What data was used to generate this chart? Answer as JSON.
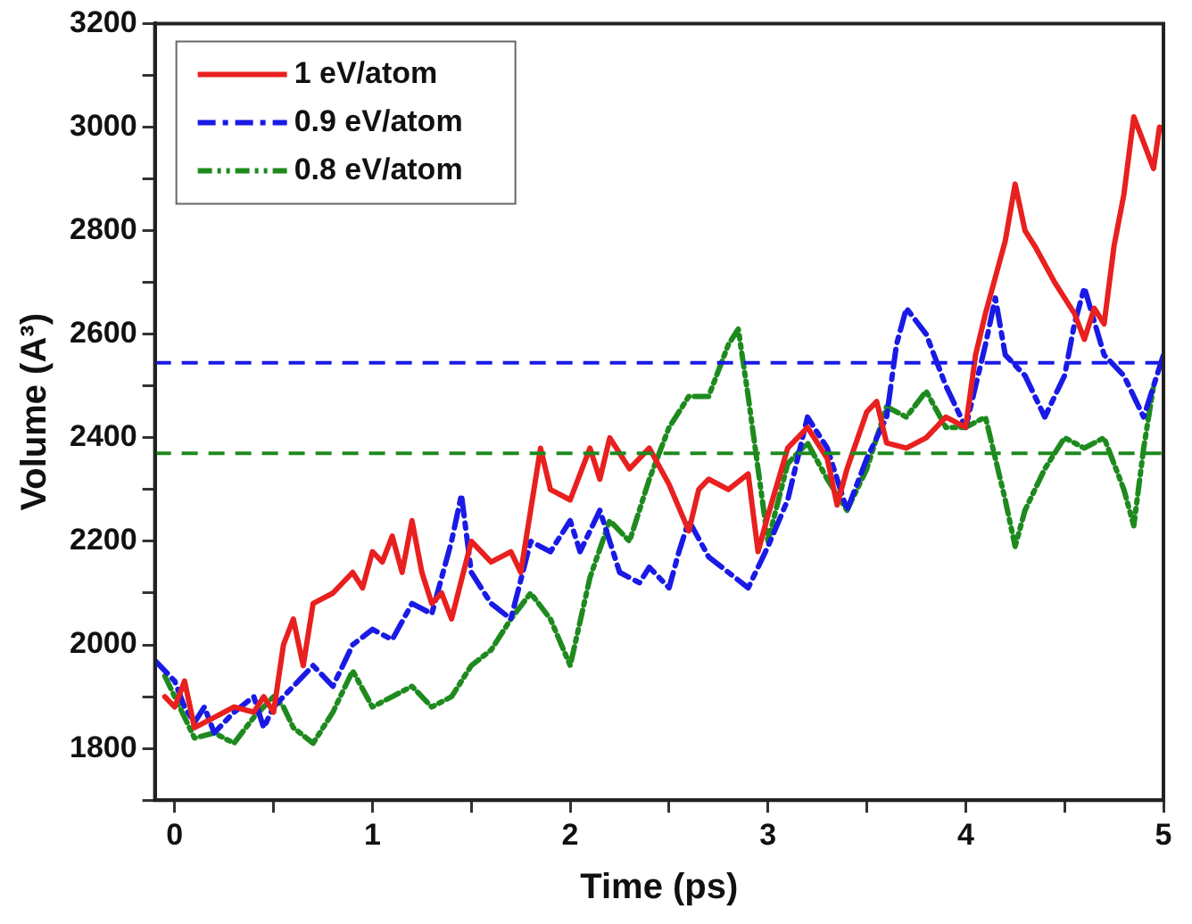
{
  "chart_data": {
    "type": "line",
    "xlabel": "Time (ps)",
    "ylabel": "Volume (A³)",
    "xlim": [
      -0.1,
      5
    ],
    "ylim": [
      1700,
      3200
    ],
    "xticks": [
      0,
      {
        "value": 0.5,
        "label": null
      },
      1,
      {
        "value": 1.5,
        "label": null
      },
      2,
      {
        "value": 2.5,
        "label": null
      },
      3,
      {
        "value": 3.5,
        "label": null
      },
      4,
      {
        "value": 4.5,
        "label": null
      },
      5
    ],
    "yticks": [
      {
        "value": 1700,
        "label": null
      },
      1800,
      {
        "value": 1900,
        "label": null
      },
      2000,
      {
        "value": 2100,
        "label": null
      },
      2200,
      {
        "value": 2300,
        "label": null
      },
      2400,
      {
        "value": 2500,
        "label": null
      },
      2600,
      {
        "value": 2700,
        "label": null
      },
      2800,
      {
        "value": 2900,
        "label": null
      },
      3000,
      {
        "value": 3100,
        "label": null
      },
      3200
    ],
    "grid": false,
    "legend": "top left",
    "marker": "none",
    "series": [
      {
        "name": "1 eV/atom",
        "color": "#e8201f",
        "line_style": "solid",
        "x": [
          -0.05,
          0,
          0.05,
          0.1,
          0.2,
          0.3,
          0.4,
          0.45,
          0.5,
          0.55,
          0.6,
          0.65,
          0.7,
          0.8,
          0.9,
          0.95,
          1.0,
          1.05,
          1.1,
          1.15,
          1.2,
          1.25,
          1.3,
          1.35,
          1.4,
          1.5,
          1.6,
          1.7,
          1.75,
          1.85,
          1.9,
          2.0,
          2.1,
          2.15,
          2.2,
          2.3,
          2.4,
          2.5,
          2.6,
          2.65,
          2.7,
          2.8,
          2.9,
          2.95,
          3.0,
          3.1,
          3.2,
          3.3,
          3.35,
          3.4,
          3.5,
          3.55,
          3.6,
          3.7,
          3.8,
          3.9,
          4.0,
          4.05,
          4.1,
          4.2,
          4.25,
          4.3,
          4.35,
          4.45,
          4.55,
          4.6,
          4.65,
          4.7,
          4.75,
          4.8,
          4.85,
          4.9,
          4.95,
          4.98
        ],
        "values": [
          1900,
          1880,
          1930,
          1840,
          1860,
          1880,
          1870,
          1900,
          1870,
          2000,
          2050,
          1960,
          2080,
          2100,
          2140,
          2110,
          2180,
          2160,
          2210,
          2140,
          2240,
          2140,
          2080,
          2100,
          2050,
          2200,
          2160,
          2180,
          2140,
          2380,
          2300,
          2280,
          2380,
          2320,
          2400,
          2340,
          2380,
          2310,
          2220,
          2300,
          2320,
          2300,
          2330,
          2180,
          2250,
          2380,
          2420,
          2360,
          2270,
          2340,
          2450,
          2470,
          2390,
          2380,
          2400,
          2440,
          2420,
          2560,
          2640,
          2780,
          2890,
          2800,
          2770,
          2700,
          2640,
          2590,
          2650,
          2620,
          2770,
          2870,
          3020,
          2970,
          2920,
          3000
        ]
      },
      {
        "name": "0.9 eV/atom",
        "color": "#1a1ae6",
        "line_style": "dashed",
        "x": [
          -0.1,
          0,
          0.05,
          0.1,
          0.15,
          0.2,
          0.3,
          0.4,
          0.45,
          0.5,
          0.6,
          0.7,
          0.8,
          0.9,
          1.0,
          1.1,
          1.2,
          1.3,
          1.4,
          1.45,
          1.5,
          1.6,
          1.7,
          1.8,
          1.9,
          2.0,
          2.05,
          2.15,
          2.25,
          2.35,
          2.4,
          2.5,
          2.55,
          2.6,
          2.7,
          2.8,
          2.9,
          3.0,
          3.1,
          3.2,
          3.3,
          3.4,
          3.5,
          3.6,
          3.65,
          3.7,
          3.8,
          3.9,
          4.0,
          4.1,
          4.15,
          4.2,
          4.3,
          4.4,
          4.5,
          4.55,
          4.6,
          4.7,
          4.8,
          4.9,
          5.0
        ],
        "values": [
          1970,
          1930,
          1880,
          1850,
          1880,
          1830,
          1870,
          1900,
          1840,
          1880,
          1920,
          1960,
          1920,
          2000,
          2030,
          2010,
          2080,
          2060,
          2200,
          2290,
          2140,
          2080,
          2050,
          2200,
          2180,
          2240,
          2180,
          2260,
          2140,
          2120,
          2150,
          2110,
          2180,
          2240,
          2170,
          2140,
          2110,
          2190,
          2280,
          2440,
          2380,
          2260,
          2360,
          2440,
          2580,
          2650,
          2600,
          2500,
          2420,
          2580,
          2670,
          2560,
          2520,
          2440,
          2520,
          2620,
          2690,
          2560,
          2520,
          2440,
          2560
        ]
      },
      {
        "name": "0.8 eV/atom",
        "color": "#1e8a1e",
        "line_style": "dotted",
        "x": [
          -0.05,
          0,
          0.1,
          0.2,
          0.3,
          0.4,
          0.5,
          0.55,
          0.6,
          0.7,
          0.8,
          0.9,
          1.0,
          1.1,
          1.2,
          1.3,
          1.4,
          1.5,
          1.6,
          1.7,
          1.8,
          1.9,
          2.0,
          2.1,
          2.2,
          2.3,
          2.4,
          2.5,
          2.6,
          2.7,
          2.8,
          2.85,
          2.9,
          3.0,
          3.1,
          3.2,
          3.3,
          3.4,
          3.5,
          3.6,
          3.7,
          3.8,
          3.9,
          4.0,
          4.1,
          4.2,
          4.25,
          4.3,
          4.4,
          4.5,
          4.6,
          4.7,
          4.8,
          4.85,
          4.9,
          4.95
        ],
        "values": [
          1940,
          1900,
          1820,
          1830,
          1810,
          1860,
          1900,
          1880,
          1840,
          1810,
          1870,
          1950,
          1880,
          1900,
          1920,
          1880,
          1900,
          1960,
          1990,
          2050,
          2100,
          2050,
          1960,
          2130,
          2240,
          2200,
          2320,
          2420,
          2480,
          2480,
          2580,
          2610,
          2480,
          2200,
          2350,
          2390,
          2320,
          2260,
          2340,
          2460,
          2440,
          2490,
          2420,
          2420,
          2440,
          2280,
          2190,
          2260,
          2340,
          2400,
          2380,
          2400,
          2300,
          2230,
          2380,
          2500
        ]
      }
    ],
    "ref_lines": [
      {
        "axis": "y",
        "value": 2545,
        "color": "#1a1ae6",
        "line_style": "dashed"
      },
      {
        "axis": "y",
        "value": 2370,
        "color": "#1e8a1e",
        "line_style": "dashed"
      }
    ]
  }
}
